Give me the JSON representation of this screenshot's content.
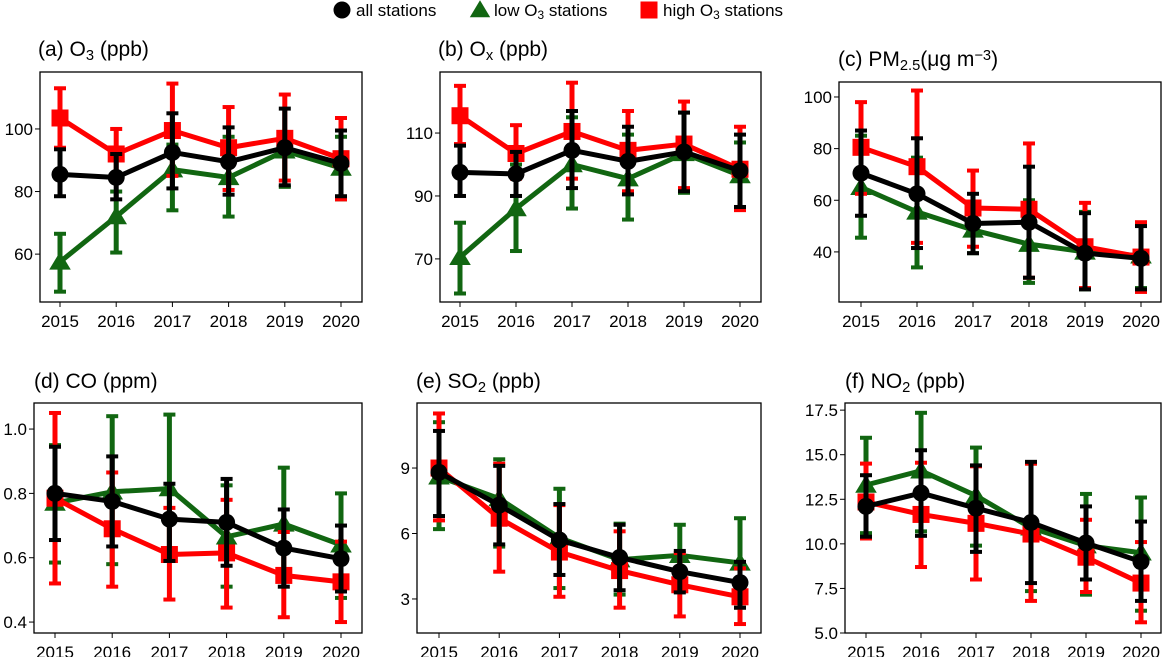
{
  "chart_data": {
    "type": "line",
    "x": [
      2015,
      2016,
      2017,
      2018,
      2019,
      2020
    ],
    "legend": {
      "placement": "top-center",
      "entries": [
        {
          "key": "all",
          "parts": [
            {
              "text": "all stations",
              "style": "normal"
            }
          ],
          "color": "#000000",
          "marker": "circle"
        },
        {
          "key": "low",
          "parts": [
            {
              "text": "low O",
              "style": "normal"
            },
            {
              "text": "3",
              "style": "sub"
            },
            {
              "text": " stations",
              "style": "normal"
            }
          ],
          "color": "#116611",
          "marker": "triangle"
        },
        {
          "key": "high",
          "parts": [
            {
              "text": "high O",
              "style": "normal"
            },
            {
              "text": "3",
              "style": "sub"
            },
            {
              "text": " stations",
              "style": "normal"
            }
          ],
          "color": "#ff0000",
          "marker": "square"
        }
      ]
    },
    "panels": [
      {
        "id": "a",
        "title": [
          {
            "text": "(a) O",
            "style": "normal"
          },
          {
            "text": "3",
            "style": "sub"
          },
          {
            "text": " (ppb)",
            "style": "normal"
          }
        ],
        "ylim": [
          44.7,
          118.2
        ],
        "yticks": [
          60,
          80,
          100
        ],
        "ytick_labels": [
          "60",
          "80",
          "100"
        ],
        "series": {
          "low": {
            "mean": [
              57.5,
              72,
              87,
              84.5,
              93,
              87.5
            ],
            "lo": [
              48,
              60.5,
              74,
              72,
              81.5,
              77.5
            ],
            "hi": [
              66.5,
              80,
              95,
              97.5,
              96,
              97.5
            ]
          },
          "high": {
            "mean": [
              103.5,
              92,
              99.5,
              94,
              97,
              90.5
            ],
            "lo": [
              94,
              84,
              85,
              80.5,
              83.5,
              77.5
            ],
            "hi": [
              113,
              100,
              114.5,
              107,
              111,
              103.5
            ]
          },
          "all": {
            "mean": [
              85.5,
              84.5,
              92.5,
              89.5,
              94,
              89
            ],
            "lo": [
              78.5,
              77.5,
              81,
              79,
              82,
              78.5
            ],
            "hi": [
              93.5,
              92,
              105,
              100.5,
              106.5,
              99.5
            ]
          }
        }
      },
      {
        "id": "b",
        "title": [
          {
            "text": "(b) O",
            "style": "normal"
          },
          {
            "text": "x",
            "style": "sub"
          },
          {
            "text": " (ppb)",
            "style": "normal"
          }
        ],
        "ylim": [
          56.3,
          129.4
        ],
        "yticks": [
          70,
          90,
          110
        ],
        "ytick_labels": [
          "70",
          "90",
          "110"
        ],
        "series": {
          "low": {
            "mean": [
              70.5,
              86,
              100,
              95.5,
              103.5,
              96.5
            ],
            "lo": [
              59,
              72.5,
              86,
              82.5,
              91,
              86
            ],
            "hi": [
              81.5,
              100,
              115,
              109.5,
              116.5,
              107
            ]
          },
          "high": {
            "mean": [
              115.5,
              103.5,
              110.5,
              104.5,
              106.5,
              98.5
            ],
            "lo": [
              106.5,
              95.5,
              95.5,
              91.5,
              92.5,
              85.5
            ],
            "hi": [
              125,
              112.5,
              126,
              117,
              120,
              112
            ]
          },
          "all": {
            "mean": [
              97.5,
              97,
              104.5,
              101,
              104,
              98
            ],
            "lo": [
              90,
              90,
              92.5,
              90.5,
              91.5,
              86.5
            ],
            "hi": [
              106,
              104,
              117,
              112,
              116.5,
              109.5
            ]
          }
        }
      },
      {
        "id": "c",
        "title": [
          {
            "text": "(c) PM",
            "style": "normal"
          },
          {
            "text": "2.5",
            "style": "sub"
          },
          {
            "text": "(μg m",
            "style": "normal"
          },
          {
            "text": "−3",
            "style": "sup"
          },
          {
            "text": ")",
            "style": "normal"
          }
        ],
        "ylim": [
          20.6,
          105.8
        ],
        "yticks": [
          40,
          60,
          80,
          100
        ],
        "ytick_labels": [
          "40",
          "60",
          "80",
          "100"
        ],
        "series": {
          "low": {
            "mean": [
              65,
              55.5,
              48.5,
              43,
              40,
              38.5
            ],
            "lo": [
              45.5,
              34,
              39.5,
              28,
              25.5,
              26
            ],
            "hi": [
              85,
              76.5,
              59,
              60,
              55.5,
              51
            ]
          },
          "high": {
            "mean": [
              80.5,
              73,
              57,
              56.5,
              42,
              38
            ],
            "lo": [
              62.5,
              43.5,
              42,
              30,
              26,
              24.5
            ],
            "hi": [
              98,
              102.5,
              71.5,
              82,
              59,
              51.5
            ]
          },
          "all": {
            "mean": [
              70.5,
              62.5,
              51,
              51.5,
              39.5,
              37.5
            ],
            "lo": [
              54,
              41.5,
              39.5,
              30,
              25.5,
              25.5
            ],
            "hi": [
              87,
              84,
              62.5,
              73,
              55,
              50
            ]
          }
        }
      },
      {
        "id": "d",
        "title": [
          {
            "text": "(d) CO (ppm)",
            "style": "normal"
          }
        ],
        "ylim": [
          0.366,
          1.081
        ],
        "yticks": [
          0.4,
          0.6,
          0.8,
          1.0
        ],
        "ytick_labels": [
          "0.4",
          "0.6",
          "0.8",
          "1.0"
        ],
        "series": {
          "low": {
            "mean": [
              0.77,
              0.805,
              0.815,
              0.665,
              0.705,
              0.64
            ],
            "lo": [
              0.585,
              0.58,
              0.59,
              0.51,
              0.53,
              0.475
            ],
            "hi": [
              0.95,
              1.04,
              1.045,
              0.825,
              0.88,
              0.8
            ]
          },
          "high": {
            "mean": [
              0.785,
              0.69,
              0.61,
              0.615,
              0.545,
              0.525
            ],
            "lo": [
              0.52,
              0.51,
              0.47,
              0.445,
              0.415,
              0.4
            ],
            "hi": [
              1.05,
              0.865,
              0.755,
              0.78,
              0.68,
              0.65
            ]
          },
          "all": {
            "mean": [
              0.8,
              0.775,
              0.72,
              0.71,
              0.63,
              0.597
            ],
            "lo": [
              0.655,
              0.635,
              0.59,
              0.575,
              0.51,
              0.495
            ],
            "hi": [
              0.945,
              0.915,
              0.83,
              0.845,
              0.75,
              0.7
            ]
          }
        }
      },
      {
        "id": "e",
        "title": [
          {
            "text": "(e) SO",
            "style": "normal"
          },
          {
            "text": "2",
            "style": "sub"
          },
          {
            "text": " (ppb)",
            "style": "normal"
          }
        ],
        "ylim": [
          1.44,
          11.98
        ],
        "yticks": [
          3,
          6,
          9
        ],
        "ytick_labels": [
          "3",
          "6",
          "9"
        ],
        "series": {
          "low": {
            "mean": [
              8.6,
              7.6,
              5.8,
              4.8,
              5.0,
              4.65
            ],
            "lo": [
              6.2,
              5.4,
              3.5,
              3.2,
              3.5,
              2.6
            ],
            "hi": [
              11.1,
              9.4,
              8.05,
              6.45,
              6.4,
              6.7
            ]
          },
          "high": {
            "mean": [
              9.0,
              6.7,
              5.15,
              4.3,
              3.65,
              3.1
            ],
            "lo": [
              6.6,
              4.25,
              3.1,
              2.6,
              2.2,
              1.85
            ],
            "hi": [
              11.5,
              9.2,
              7.3,
              6.1,
              5.1,
              4.4
            ]
          },
          "all": {
            "mean": [
              8.8,
              7.3,
              5.7,
              4.9,
              4.25,
              3.75
            ],
            "lo": [
              6.8,
              5.5,
              4.1,
              3.4,
              3.3,
              2.6
            ],
            "hi": [
              10.7,
              9.1,
              7.35,
              6.4,
              5.2,
              4.7
            ]
          }
        }
      },
      {
        "id": "f",
        "title": [
          {
            "text": "(f) NO",
            "style": "normal"
          },
          {
            "text": "2",
            "style": "sub"
          },
          {
            "text": " (ppb)",
            "style": "normal"
          }
        ],
        "ylim": [
          5.0,
          17.9
        ],
        "yticks": [
          5.0,
          7.5,
          10.0,
          12.5,
          15.0,
          17.5
        ],
        "ytick_labels": [
          "5.0",
          "7.5",
          "10.0",
          "12.5",
          "15.0",
          "17.5"
        ],
        "series": {
          "low": {
            "mean": [
              13.3,
              14.1,
              12.7,
              10.9,
              9.9,
              9.5
            ],
            "lo": [
              10.6,
              10.7,
              9.9,
              7.35,
              7.15,
              6.25
            ],
            "hi": [
              15.95,
              17.35,
              15.4,
              14.5,
              12.8,
              12.6
            ]
          },
          "high": {
            "mean": [
              12.35,
              11.65,
              11.15,
              10.55,
              9.25,
              7.8
            ],
            "lo": [
              10.3,
              8.7,
              8.0,
              6.8,
              7.3,
              5.6
            ],
            "hi": [
              14.5,
              14.55,
              14.35,
              14.5,
              11.35,
              10.1
            ]
          },
          "all": {
            "mean": [
              12.1,
              12.85,
              12.0,
              11.2,
              10.05,
              9.0
            ],
            "lo": [
              10.4,
              10.45,
              9.55,
              7.8,
              8.0,
              6.8
            ],
            "hi": [
              13.85,
              15.25,
              14.4,
              14.6,
              12.1,
              11.25
            ]
          }
        }
      }
    ]
  }
}
